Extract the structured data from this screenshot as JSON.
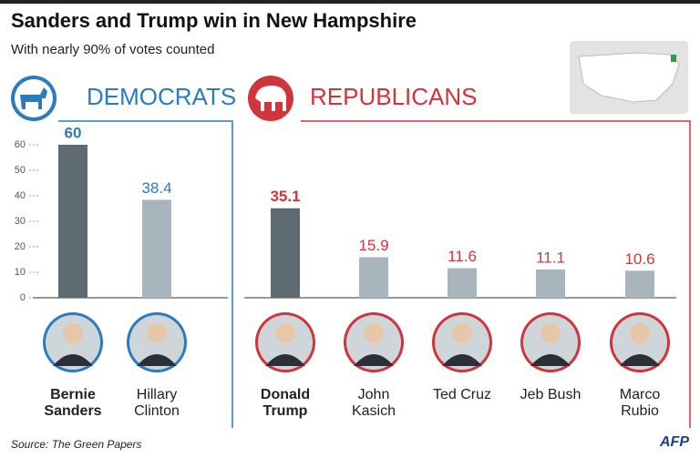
{
  "title": "Sanders and Trump win in New Hampshire",
  "subtitle": "With nearly 90% of votes counted",
  "source": "Source: The Green Papers",
  "logo": "AFP",
  "chart_data": [
    {
      "type": "bar",
      "title": "DEMOCRATS",
      "color": "#2a7bbf",
      "categories": [
        "Bernie Sanders",
        "Hillary Clinton"
      ],
      "values": [
        60,
        38.4
      ],
      "bar_colors": [
        "#5f6b73",
        "#a9b5bc"
      ],
      "ylim": [
        0,
        65
      ],
      "yticks": [
        0,
        10,
        20,
        30,
        40,
        50,
        60
      ]
    },
    {
      "type": "bar",
      "title": "REPUBLICANS",
      "color": "#d0343c",
      "categories": [
        "Donald Trump",
        "John Kasich",
        "Ted Cruz",
        "Jeb Bush",
        "Marco Rubio"
      ],
      "values": [
        35.1,
        15.9,
        11.6,
        11.1,
        10.6
      ],
      "bar_colors": [
        "#5f6b73",
        "#a9b5bc",
        "#a9b5bc",
        "#a9b5bc",
        "#a9b5bc"
      ],
      "ylim": [
        0,
        65
      ]
    }
  ]
}
